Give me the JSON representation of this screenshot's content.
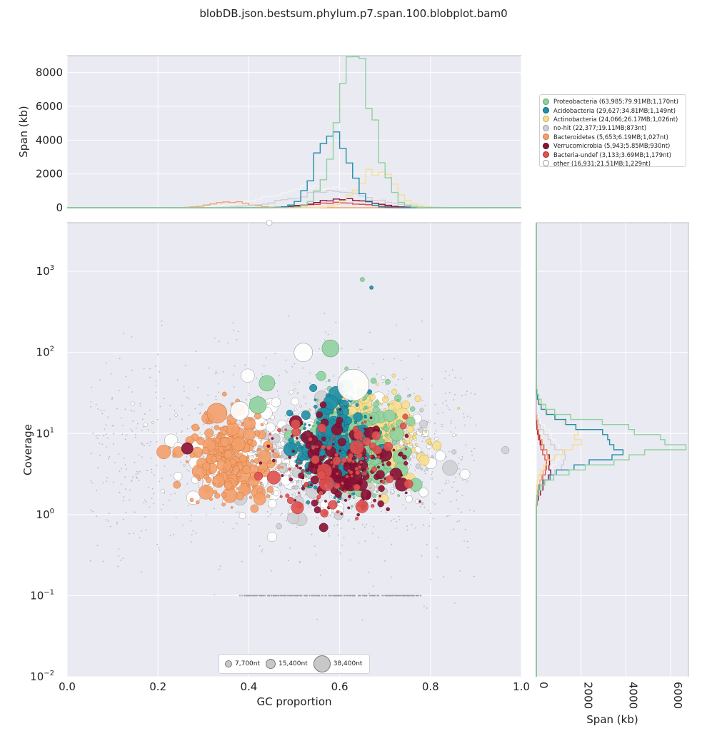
{
  "chart_data": {
    "type": "scatter",
    "title": "blobDB.json.bestsum.phylum.p7.span.100.blobplot.bam0",
    "main": {
      "xlabel": "GC proportion",
      "ylabel": "Coverage",
      "xlim": [
        0.0,
        1.0
      ],
      "ylim_log10": [
        -2,
        3.6
      ],
      "x_ticks": [
        "0.0",
        "0.2",
        "0.4",
        "0.6",
        "0.8",
        "1.0"
      ],
      "y_ticks": [
        {
          "base": "10",
          "exp": "−2"
        },
        {
          "base": "10",
          "exp": "−1"
        },
        {
          "base": "10",
          "exp": "0"
        },
        {
          "base": "10",
          "exp": "1"
        },
        {
          "base": "10",
          "exp": "2"
        },
        {
          "base": "10",
          "exp": "3"
        }
      ],
      "scale": "log",
      "grid": true
    },
    "top_hist": {
      "ylabel": "Span (kb)",
      "y_ticks": [
        "0",
        "2000",
        "4000",
        "6000",
        "8000"
      ],
      "ylim": [
        0,
        9000
      ]
    },
    "right_hist": {
      "xlabel": "Span (kb)",
      "x_ticks": [
        "0",
        "2000",
        "4000",
        "6000"
      ],
      "xlim": [
        0,
        6800
      ]
    },
    "series": [
      {
        "name": "Proteobacteria (63,985;79.91MB;1,170nt)",
        "color": "#8fd19e",
        "edge": "#5fa56f",
        "gc_peak": 0.635,
        "span_peak": 8600,
        "gc_sd": 0.04,
        "cov_peak": 7.5,
        "cov_span_peak": 6400
      },
      {
        "name": "Acidobacteria (29,627;34.81MB;1,149nt)",
        "color": "#1f8fa6",
        "edge": "#136676",
        "gc_peak": 0.585,
        "span_peak": 4700,
        "gc_sd": 0.035,
        "cov_peak": 7.0,
        "cov_span_peak": 3900
      },
      {
        "name": "Actinobacteria (24,066;26.17MB;1,026nt)",
        "color": "#f6df92",
        "edge": "#c9a844",
        "gc_peak": 0.68,
        "span_peak": 2200,
        "gc_sd": 0.04,
        "cov_peak": 9.0,
        "cov_span_peak": 1900
      },
      {
        "name": "no-hit (22,377;19.11MB;873nt)",
        "color": "#cfcfd4",
        "edge": "#9a9aa2",
        "gc_peak": 0.58,
        "span_peak": 900,
        "gc_sd": 0.09,
        "cov_peak": 5.0,
        "cov_span_peak": 1200
      },
      {
        "name": "Bacteroidetes (5,653;6.19MB;1,027nt)",
        "color": "#f4a06a",
        "edge": "#d0763e",
        "gc_peak": 0.36,
        "span_peak": 350,
        "gc_sd": 0.04,
        "cov_peak": 5.0,
        "cov_span_peak": 450
      },
      {
        "name": "Verrucomicrobia (5,943;5.85MB;930nt)",
        "color": "#8b1034",
        "edge": "#5a0a22",
        "gc_peak": 0.61,
        "span_peak": 500,
        "gc_sd": 0.06,
        "cov_peak": 4.0,
        "cov_span_peak": 650
      },
      {
        "name": "Bacteria-undef (3,133;3.69MB;1,179nt)",
        "color": "#e0514f",
        "edge": "#b0302f",
        "gc_peak": 0.6,
        "span_peak": 300,
        "gc_sd": 0.06,
        "cov_peak": 4.0,
        "cov_span_peak": 420
      },
      {
        "name": "other (16,931;21.51MB;1,229nt)",
        "color": "#ffffff",
        "edge": "#9a9a9a",
        "gc_peak": 0.55,
        "span_peak": 1200,
        "gc_sd": 0.1,
        "cov_peak": 6.0,
        "cov_span_peak": 1100
      }
    ],
    "size_legend": [
      "7,700nt",
      "15,400nt",
      "38,400nt"
    ]
  }
}
